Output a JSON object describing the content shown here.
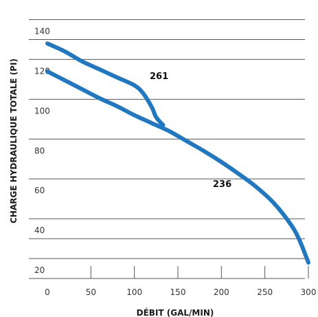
{
  "chart_data": {
    "type": "line",
    "xlabel": "DÉBIT (GAL/MIN)",
    "ylabel": "CHARGE HYDRAULIQUE TOTALE (PI)",
    "xlim": [
      0,
      300
    ],
    "ylim": [
      10,
      145
    ],
    "x_ticks": [
      0,
      50,
      100,
      150,
      200,
      250,
      300
    ],
    "y_ticks": [
      20,
      40,
      60,
      80,
      100,
      120,
      140
    ],
    "grid": "horizontal",
    "series_color": "#1f78c1",
    "series": [
      {
        "name": "261",
        "x": [
          0,
          20,
          40,
          60,
          80,
          100,
          110,
          120,
          125,
          133
        ],
        "y": [
          128,
          124,
          119,
          115,
          111,
          107,
          103,
          96,
          91,
          87
        ]
      },
      {
        "name": "236",
        "x": [
          0,
          20,
          40,
          60,
          80,
          100,
          120,
          140,
          160,
          180,
          200,
          220,
          240,
          260,
          280,
          290,
          300
        ],
        "y": [
          114,
          109.5,
          105,
          100.5,
          96.5,
          92,
          88,
          84,
          79,
          74,
          68.5,
          62.5,
          56,
          48,
          37,
          29,
          18
        ]
      }
    ]
  }
}
